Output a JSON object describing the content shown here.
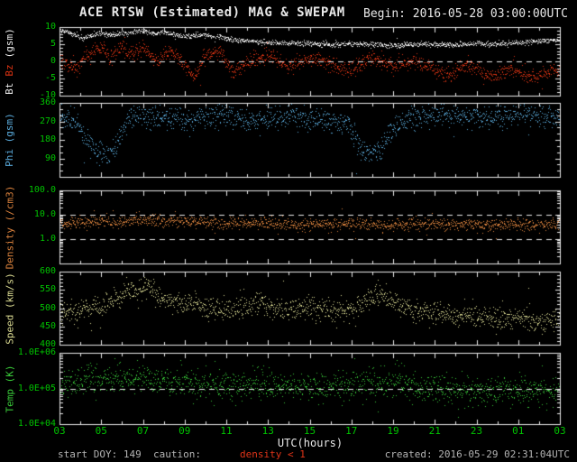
{
  "header": {
    "title": "ACE RTSW (Estimated) MAG & SWEPAM",
    "begin": "Begin: 2016-05-28 03:00:00UTC"
  },
  "footer": {
    "start_doy": "start DOY: 149",
    "caution_label": "caution:",
    "caution_text": "density < 1",
    "created": "created: 2016-05-29 02:31:04UTC"
  },
  "colors": {
    "background": "#000000",
    "white": "#e8e8e8",
    "frame": "#e8e8e8",
    "dashed_line": "#e8e8e8",
    "tick_label": "#00c400",
    "footer_text": "#b4b4b4",
    "caution": "#e03418",
    "bt": "#ececec",
    "bz": "#dd3312",
    "phi": "#58a8d8",
    "density": "#d8803c",
    "speed": "#d8d890",
    "temp": "#38c838"
  },
  "chart_data": {
    "type": "scatter",
    "title": "ACE RTSW (Estimated) MAG & SWEPAM",
    "begin_label": "Begin: 2016-05-28 03:00:00UTC",
    "legend_position": "left-axis-labels",
    "grid": false,
    "x_axis": {
      "label": "UTC(hours)",
      "start_hour": 3,
      "end_hour": 27,
      "major_tick_every_hours": 2,
      "minor_tick_every_hours": 1,
      "tick_labels": [
        "03",
        "05",
        "07",
        "09",
        "11",
        "13",
        "15",
        "17",
        "19",
        "21",
        "23",
        "01",
        "03"
      ]
    },
    "panels": [
      {
        "id": "mag",
        "ylabel_parts": [
          {
            "text": "Bt",
            "color_key": "bt"
          },
          {
            "text": "Bz",
            "color_key": "bz"
          },
          {
            "text": "(gsm)",
            "color_key": "white"
          }
        ],
        "scale": "linear",
        "ymin": -10,
        "ymax": 10,
        "yminor": 1,
        "yticks": [
          {
            "label": "10",
            "value": 10
          },
          {
            "label": "5",
            "value": 5
          },
          {
            "label": "0",
            "value": 0
          },
          {
            "label": "-5",
            "value": -5
          },
          {
            "label": "-10",
            "value": -10
          }
        ],
        "dashed_values": [
          0
        ],
        "series": [
          {
            "name": "Bt",
            "color_key": "bt",
            "noise": 0.35,
            "points_per_hour": 60,
            "anchors": [
              [
                3,
                9.4
              ],
              [
                3.6,
                8.2
              ],
              [
                4.1,
                6.6
              ],
              [
                4.6,
                7.8
              ],
              [
                5,
                8.4
              ],
              [
                5.5,
                7.8
              ],
              [
                6,
                8.1
              ],
              [
                6.5,
                8.6
              ],
              [
                7,
                8.9
              ],
              [
                7.5,
                8.3
              ],
              [
                8,
                8.5
              ],
              [
                8.5,
                7.9
              ],
              [
                9,
                7.4
              ],
              [
                9.5,
                7.7
              ],
              [
                10,
                7.8
              ],
              [
                10.5,
                7.2
              ],
              [
                11,
                6.7
              ],
              [
                11.5,
                6.4
              ],
              [
                12,
                6.1
              ],
              [
                12.5,
                5.9
              ],
              [
                13,
                5.7
              ],
              [
                14,
                5.4
              ],
              [
                15,
                5.2
              ],
              [
                16,
                5.0
              ],
              [
                17,
                5.2
              ],
              [
                18,
                5.0
              ],
              [
                19,
                4.8
              ],
              [
                20,
                5.0
              ],
              [
                21,
                5.1
              ],
              [
                22,
                4.9
              ],
              [
                23,
                5.3
              ],
              [
                24,
                5.1
              ],
              [
                25,
                5.6
              ],
              [
                26,
                6.0
              ],
              [
                27,
                6.4
              ]
            ]
          },
          {
            "name": "Bz",
            "color_key": "bz",
            "noise": 1.1,
            "points_per_hour": 60,
            "anchors": [
              [
                3,
                1.0
              ],
              [
                3.7,
                -2.5
              ],
              [
                4.3,
                2.0
              ],
              [
                5,
                4.0
              ],
              [
                5.5,
                1.0
              ],
              [
                6,
                4.5
              ],
              [
                6.5,
                2.0
              ],
              [
                7,
                4.2
              ],
              [
                7.7,
                0.0
              ],
              [
                8.3,
                3.5
              ],
              [
                9,
                -1.0
              ],
              [
                9.5,
                -4.0
              ],
              [
                10,
                2.0
              ],
              [
                10.7,
                3.0
              ],
              [
                11.3,
                -3.0
              ],
              [
                12,
                0.0
              ],
              [
                13,
                2.0
              ],
              [
                14,
                -1.5
              ],
              [
                15,
                1.0
              ],
              [
                16,
                -0.5
              ],
              [
                17,
                -2.5
              ],
              [
                18,
                1.5
              ],
              [
                19,
                -1.0
              ],
              [
                20,
                0.5
              ],
              [
                21,
                -2.0
              ],
              [
                21.7,
                -4.5
              ],
              [
                22.3,
                -1.0
              ],
              [
                23,
                -2.0
              ],
              [
                23.7,
                -4.8
              ],
              [
                24.5,
                -2.0
              ],
              [
                25.3,
                -3.5
              ],
              [
                26,
                -4.5
              ],
              [
                26.7,
                -2.0
              ],
              [
                27,
                -3.0
              ]
            ]
          }
        ]
      },
      {
        "id": "phi",
        "ylabel_parts": [
          {
            "text": "Phi (gsm)",
            "color_key": "phi"
          }
        ],
        "scale": "linear",
        "ymin": 0,
        "ymax": 360,
        "yminor": 30,
        "yticks": [
          {
            "label": "360",
            "value": 360
          },
          {
            "label": "270",
            "value": 270
          },
          {
            "label": "180",
            "value": 180
          },
          {
            "label": "90",
            "value": 90
          }
        ],
        "dashed_values": [],
        "series": [
          {
            "name": "Phi",
            "color_key": "phi",
            "noise": 28,
            "points_per_hour": 60,
            "anchors": [
              [
                3,
                295
              ],
              [
                3.8,
                270
              ],
              [
                4.3,
                180
              ],
              [
                4.8,
                120
              ],
              [
                5.4,
                110
              ],
              [
                5.9,
                200
              ],
              [
                6.3,
                290
              ],
              [
                7,
                305
              ],
              [
                8,
                290
              ],
              [
                9,
                275
              ],
              [
                10,
                300
              ],
              [
                10.8,
                310
              ],
              [
                11.5,
                285
              ],
              [
                12.3,
                265
              ],
              [
                13,
                290
              ],
              [
                14,
                300
              ],
              [
                15,
                285
              ],
              [
                16,
                270
              ],
              [
                16.8,
                255
              ],
              [
                17.4,
                150
              ],
              [
                17.9,
                110
              ],
              [
                18.4,
                140
              ],
              [
                18.9,
                230
              ],
              [
                19.5,
                290
              ],
              [
                20.5,
                300
              ],
              [
                21.5,
                295
              ],
              [
                22.5,
                305
              ],
              [
                23.5,
                290
              ],
              [
                24.5,
                300
              ],
              [
                25.5,
                310
              ],
              [
                26.3,
                295
              ],
              [
                27,
                305
              ]
            ]
          }
        ]
      },
      {
        "id": "density",
        "ylabel_parts": [
          {
            "text": "Density (/cm3)",
            "color_key": "density"
          }
        ],
        "scale": "log",
        "ymin": 0.1,
        "ymax": 100,
        "yticks": [
          {
            "label": "100.0",
            "value": 100
          },
          {
            "label": "10.0",
            "value": 10
          },
          {
            "label": "1.0",
            "value": 1
          }
        ],
        "dashed_values": [
          10,
          1
        ],
        "series": [
          {
            "name": "Density",
            "color_key": "density",
            "noise": 0.12,
            "points_per_hour": 60,
            "anchors": [
              [
                3,
                4.5
              ],
              [
                4,
                5.5
              ],
              [
                5,
                6.0
              ],
              [
                6,
                5.0
              ],
              [
                7,
                6.5
              ],
              [
                8,
                5.5
              ],
              [
                9,
                6.0
              ],
              [
                10,
                5.0
              ],
              [
                11,
                4.5
              ],
              [
                12,
                5.0
              ],
              [
                13,
                4.5
              ],
              [
                14,
                4.0
              ],
              [
                15,
                4.5
              ],
              [
                16,
                4.0
              ],
              [
                17,
                4.5
              ],
              [
                18,
                4.0
              ],
              [
                19,
                3.8
              ],
              [
                20,
                4.2
              ],
              [
                21,
                4.0
              ],
              [
                22,
                4.3
              ],
              [
                23,
                3.8
              ],
              [
                24,
                4.0
              ],
              [
                25,
                4.2
              ],
              [
                26,
                4.0
              ],
              [
                27,
                4.5
              ]
            ]
          }
        ]
      },
      {
        "id": "speed",
        "ylabel_parts": [
          {
            "text": "Speed (km/s)",
            "color_key": "speed"
          }
        ],
        "scale": "linear",
        "ymin": 400,
        "ymax": 600,
        "yminor": 10,
        "yticks": [
          {
            "label": "600",
            "value": 600
          },
          {
            "label": "550",
            "value": 550
          },
          {
            "label": "500",
            "value": 500
          },
          {
            "label": "450",
            "value": 450
          },
          {
            "label": "400",
            "value": 400
          }
        ],
        "dashed_values": [],
        "series": [
          {
            "name": "Speed",
            "color_key": "speed",
            "noise": 15,
            "points_per_hour": 60,
            "anchors": [
              [
                3,
                485
              ],
              [
                4,
                495
              ],
              [
                5,
                505
              ],
              [
                5.8,
                530
              ],
              [
                6.3,
                555
              ],
              [
                6.8,
                540
              ],
              [
                7.2,
                565
              ],
              [
                7.8,
                530
              ],
              [
                8.5,
                515
              ],
              [
                9,
                510
              ],
              [
                9.5,
                520
              ],
              [
                10,
                500
              ],
              [
                11,
                495
              ],
              [
                12,
                505
              ],
              [
                12.7,
                520
              ],
              [
                13.3,
                500
              ],
              [
                14,
                495
              ],
              [
                15,
                505
              ],
              [
                16,
                495
              ],
              [
                17,
                500
              ],
              [
                17.8,
                520
              ],
              [
                18.3,
                535
              ],
              [
                19,
                515
              ],
              [
                20,
                495
              ],
              [
                21,
                485
              ],
              [
                22,
                478
              ],
              [
                23,
                482
              ],
              [
                24,
                470
              ],
              [
                25,
                475
              ],
              [
                26,
                465
              ],
              [
                27,
                472
              ]
            ]
          }
        ]
      },
      {
        "id": "temp",
        "ylabel_parts": [
          {
            "text": "Temp (K)",
            "color_key": "temp"
          }
        ],
        "scale": "log",
        "ymin": 10000,
        "ymax": 1000000,
        "yticks": [
          {
            "label": "1.0E+06",
            "value": 1000000
          },
          {
            "label": "1.0E+05",
            "value": 100000
          },
          {
            "label": "1.0E+04",
            "value": 10000
          }
        ],
        "dashed_values": [
          100000
        ],
        "series": [
          {
            "name": "Temp",
            "color_key": "temp",
            "noise": 0.2,
            "points_per_hour": 60,
            "anchors": [
              [
                3,
                150000
              ],
              [
                4,
                170000
              ],
              [
                5,
                190000
              ],
              [
                6,
                180000
              ],
              [
                7,
                210000
              ],
              [
                8,
                170000
              ],
              [
                9,
                150000
              ],
              [
                10,
                140000
              ],
              [
                11,
                120000
              ],
              [
                12,
                130000
              ],
              [
                13,
                125000
              ],
              [
                14,
                110000
              ],
              [
                15,
                115000
              ],
              [
                16,
                105000
              ],
              [
                17,
                120000
              ],
              [
                18,
                150000
              ],
              [
                19,
                140000
              ],
              [
                20,
                110000
              ],
              [
                21,
                100000
              ],
              [
                22,
                95000
              ],
              [
                23,
                90000
              ],
              [
                24,
                85000
              ],
              [
                25,
                90000
              ],
              [
                26,
                80000
              ],
              [
                27,
                90000
              ]
            ]
          }
        ]
      }
    ]
  }
}
